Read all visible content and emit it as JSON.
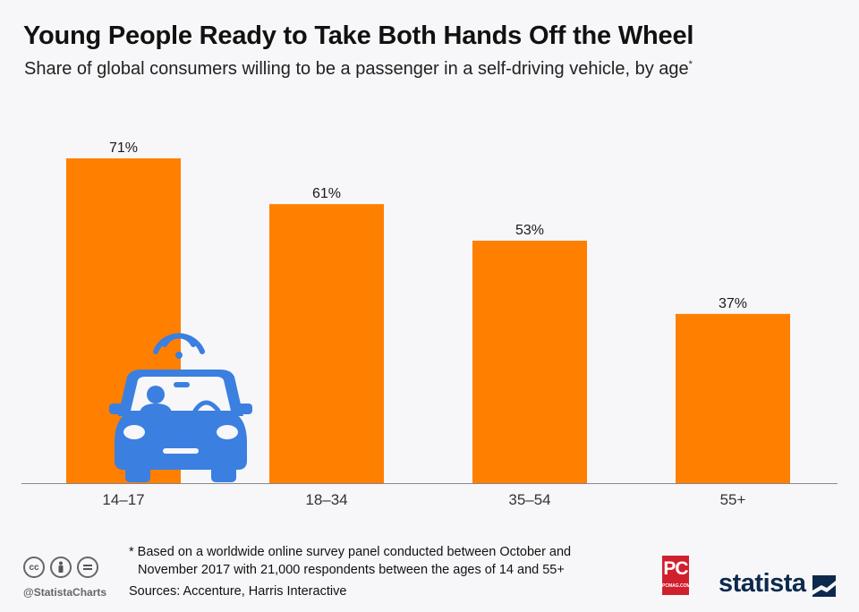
{
  "header": {
    "title": "Young People Ready to Take Both Hands Off the Wheel",
    "subtitle": "Share of global consumers willing to be a passenger in a self-driving vehicle, by age",
    "subtitle_mark": "*"
  },
  "chart_data": {
    "type": "bar",
    "categories": [
      "14–17",
      "18–34",
      "35–54",
      "55+"
    ],
    "values": [
      71,
      61,
      53,
      37
    ],
    "value_labels": [
      "71%",
      "61%",
      "53%",
      "37%"
    ],
    "unit": "%",
    "ylim": [
      0,
      71
    ],
    "grid": false,
    "bar_color": "#ff7f00",
    "title": "Young People Ready to Take Both Hands Off the Wheel",
    "xlabel": "",
    "ylabel": ""
  },
  "illustration": {
    "icon": "self-driving-car-icon",
    "color": "#3b7fe0"
  },
  "footer": {
    "note_line1": "* Based on a worldwide online survey panel conducted between October and",
    "note_line2": "November 2017 with 21,000 respondents between the ages of 14 and 55+",
    "sources": "Sources: Accenture, Harris Interactive",
    "handle": "@StatistaCharts",
    "pc_logo": "PC",
    "pc_sub": "PCMAG.COM",
    "brand": "statista"
  }
}
